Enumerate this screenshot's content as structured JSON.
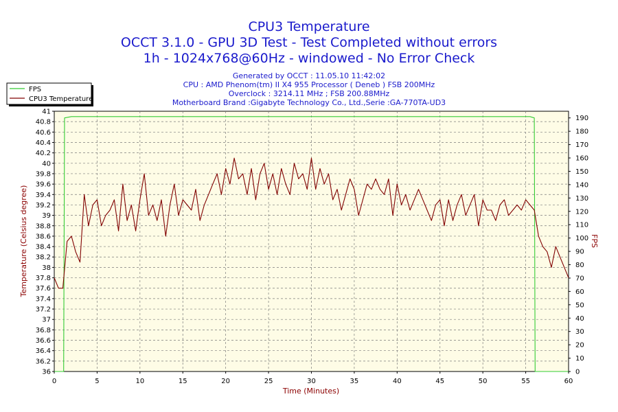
{
  "chart_data": {
    "type": "line",
    "title": "CPU3 Temperature",
    "subtitle_lines": [
      "OCCT 3.1.0 - GPU 3D Test - Test Completed without errors",
      "1h - 1024x768@60Hz - windowed - No Error Check"
    ],
    "info_lines": [
      "Generated by OCCT : 11.05.10 11:42:02",
      "CPU : AMD Phenom(tm) II X4 955 Processor ( Deneb ) FSB 200MHz",
      "Overclock : 3214.11 MHz ; FSB 200.88MHz",
      "Motherboard Brand :Gigabyte Technology Co., Ltd.,Serie :GA-770TA-UD3"
    ],
    "xlabel": "Time (Minutes)",
    "ylabel_left": "Temperature (Celsius degree)",
    "ylabel_right": "FPS",
    "xlim": [
      0,
      60
    ],
    "ylim_left": [
      36,
      41
    ],
    "ylim_right": [
      0,
      195
    ],
    "x_ticks": [
      0,
      5,
      10,
      15,
      20,
      25,
      30,
      35,
      40,
      45,
      50,
      55,
      60
    ],
    "y_left_ticks": [
      "36",
      "36.2",
      "36.4",
      "36.6",
      "36.8",
      "37",
      "37.2",
      "37.4",
      "37.6",
      "37.8",
      "38",
      "38.2",
      "38.4",
      "38.6",
      "38.8",
      "39",
      "39.2",
      "39.4",
      "39.6",
      "39.8",
      "40",
      "40.2",
      "40.4",
      "40.6",
      "40.8",
      "41"
    ],
    "y_right_ticks": [
      0,
      10,
      20,
      30,
      40,
      50,
      60,
      70,
      80,
      90,
      100,
      110,
      120,
      130,
      140,
      150,
      160,
      170,
      180,
      190
    ],
    "grid": true,
    "legend_position": "top-left",
    "series": [
      {
        "name": "FPS",
        "axis": "right",
        "color": "#33cc33",
        "x": [
          0,
          1.1,
          1.2,
          2,
          10,
          20,
          30,
          40,
          50,
          55.5,
          56.0,
          56.1,
          60
        ],
        "y": [
          0,
          0,
          190,
          191,
          191,
          191,
          191,
          191,
          191,
          191,
          190,
          0,
          0
        ]
      },
      {
        "name": "CPU3 Temperature",
        "axis": "left",
        "color": "#800000",
        "x": [
          0,
          0.5,
          1,
          1.5,
          2,
          2.5,
          3,
          3.5,
          4,
          4.5,
          5,
          5.5,
          6,
          6.5,
          7,
          7.5,
          8,
          8.5,
          9,
          9.5,
          10,
          10.5,
          11,
          11.5,
          12,
          12.5,
          13,
          13.5,
          14,
          14.5,
          15,
          15.5,
          16,
          16.5,
          17,
          17.5,
          18,
          18.5,
          19,
          19.5,
          20,
          20.5,
          21,
          21.5,
          22,
          22.5,
          23,
          23.5,
          24,
          24.5,
          25,
          25.5,
          26,
          26.5,
          27,
          27.5,
          28,
          28.5,
          29,
          29.5,
          30,
          30.5,
          31,
          31.5,
          32,
          32.5,
          33,
          33.5,
          34,
          34.5,
          35,
          35.5,
          36,
          36.5,
          37,
          37.5,
          38,
          38.5,
          39,
          39.5,
          40,
          40.5,
          41,
          41.5,
          42,
          42.5,
          43,
          43.5,
          44,
          44.5,
          45,
          45.5,
          46,
          46.5,
          47,
          47.5,
          48,
          48.5,
          49,
          49.5,
          50,
          50.5,
          51,
          51.5,
          52,
          52.5,
          53,
          53.5,
          54,
          54.5,
          55,
          55.5,
          56,
          56.5,
          57,
          57.5,
          58,
          58.5,
          59,
          59.5,
          60
        ],
        "y": [
          37.8,
          37.6,
          37.6,
          38.5,
          38.6,
          38.3,
          38.1,
          39.4,
          38.8,
          39.2,
          39.3,
          38.8,
          39,
          39.1,
          39.3,
          38.7,
          39.6,
          38.9,
          39.2,
          38.7,
          39.3,
          39.8,
          39,
          39.2,
          38.9,
          39.3,
          38.6,
          39.2,
          39.6,
          39,
          39.3,
          39.2,
          39.1,
          39.5,
          38.9,
          39.2,
          39.4,
          39.6,
          39.8,
          39.4,
          39.9,
          39.6,
          40.1,
          39.7,
          39.8,
          39.4,
          39.9,
          39.3,
          39.8,
          40,
          39.5,
          39.8,
          39.4,
          39.9,
          39.6,
          39.4,
          40,
          39.7,
          39.8,
          39.5,
          40.1,
          39.5,
          39.9,
          39.6,
          39.8,
          39.3,
          39.5,
          39.1,
          39.4,
          39.7,
          39.5,
          39,
          39.3,
          39.6,
          39.5,
          39.7,
          39.5,
          39.4,
          39.7,
          39,
          39.6,
          39.2,
          39.4,
          39.1,
          39.3,
          39.5,
          39.3,
          39.1,
          38.9,
          39.2,
          39.3,
          38.8,
          39.3,
          38.9,
          39.2,
          39.4,
          39,
          39.2,
          39.4,
          38.8,
          39.3,
          39.1,
          39.1,
          38.9,
          39.2,
          39.3,
          39,
          39.1,
          39.2,
          39.1,
          39.3,
          39.2,
          39.1,
          38.6,
          38.4,
          38.3,
          38,
          38.4,
          38.2,
          38,
          37.8
        ]
      }
    ]
  }
}
